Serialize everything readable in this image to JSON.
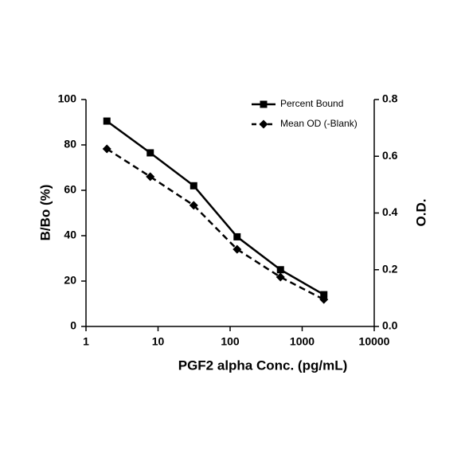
{
  "chart_data": {
    "type": "line",
    "xlabel": "PGF2 alpha Conc. (pg/mL)",
    "ylabel": "B/Bo (%)",
    "y2label": "O.D.",
    "x": [
      1.95,
      7.8,
      31.25,
      125,
      500,
      2000
    ],
    "xscale": "log",
    "xlim": [
      1,
      10000
    ],
    "xticks": [
      1,
      10,
      100,
      1000,
      10000
    ],
    "ylim": [
      0,
      100
    ],
    "yticks": [
      0,
      20,
      40,
      60,
      80,
      100
    ],
    "y2lim": [
      0,
      0.8
    ],
    "y2ticks": [
      {
        "value": 0,
        "label": "0.0"
      },
      0.2,
      0.4,
      0.6,
      0.8
    ],
    "legend": "upper right",
    "series": [
      {
        "name": "Percent Bound",
        "color": "#000000",
        "marker": "square",
        "dash": false,
        "values": [
          90.5,
          76.5,
          62,
          39.5,
          25,
          14
        ]
      },
      {
        "name": "Mean OD (-Blank)",
        "color": "#000000",
        "marker": "diamond",
        "dash": true,
        "axis": "y2",
        "values": [
          0.626,
          0.528,
          0.427,
          0.272,
          0.174,
          0.095
        ]
      }
    ]
  }
}
